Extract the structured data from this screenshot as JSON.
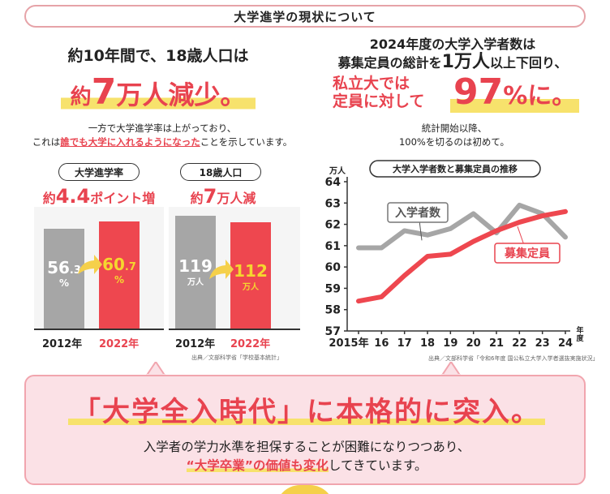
{
  "header": {
    "title": "大学進学の現状について"
  },
  "left": {
    "headline1": "約10年間で、18歳人口は",
    "headline2": {
      "pre": "約",
      "num": "7",
      "post": "万人減少。"
    },
    "note": {
      "line1": "一方で大学進学率は上がっており、",
      "line2_pre": "これは",
      "line2_red": "誰でも大学に入れるようになった",
      "line2_post": "ことを示しています。"
    },
    "panel1": {
      "pill": "大学進学率",
      "sub": {
        "pre": "約",
        "num": "4.4",
        "post": "ポイント増"
      },
      "bars": [
        {
          "year": "2012年",
          "value": 56.3,
          "label_main": "56",
          "label_dec": ".3",
          "label_unit": "%"
        },
        {
          "year": "2022年",
          "value": 60.7,
          "label_main": "60",
          "label_dec": ".7",
          "label_unit": "%"
        }
      ]
    },
    "panel2": {
      "pill": "18歳人口",
      "sub": {
        "pre": "約",
        "num": "7",
        "post": "万人減"
      },
      "bars": [
        {
          "year": "2012年",
          "value": 119,
          "label_main": "119",
          "label_unit": "万人"
        },
        {
          "year": "2022年",
          "value": 112,
          "label_main": "112",
          "label_unit": "万人"
        }
      ]
    },
    "source": "出典／文部科学省「学校基本統計」"
  },
  "right": {
    "headline1_a": "2024年度の大学入学者数は",
    "headline1_b_pre": "募集定員の総計を",
    "headline1_b_big": "1万人",
    "headline1_b_post": "以上下回り、",
    "headline2_line1": "私立大では",
    "headline2_line2": "定員に対して",
    "headline2_pct": "97",
    "headline2_pct_unit": "%に。",
    "note_line1": "統計開始以降、",
    "note_line2": "100%を切るのは初めて。",
    "source": "出典／文部科学省「令和6年度 国公私立大学入学者選抜実施状況」"
  },
  "chart_data": {
    "type": "line",
    "title": "大学入学者数と募集定員の推移",
    "ylabel": "万人",
    "xlabel_suffix": "年度",
    "ylim": [
      57,
      64
    ],
    "yticks": [
      57,
      58,
      59,
      60,
      61,
      62,
      63,
      64
    ],
    "x": [
      "2015年",
      "16",
      "17",
      "18",
      "19",
      "20",
      "21",
      "22",
      "23",
      "24"
    ],
    "series": [
      {
        "name": "入学者数",
        "color": "#a6a6a6",
        "values": [
          60.9,
          60.9,
          61.7,
          61.5,
          61.8,
          62.5,
          61.6,
          62.9,
          62.5,
          61.4
        ]
      },
      {
        "name": "募集定員",
        "color": "#ee474f",
        "values": [
          58.4,
          58.6,
          59.6,
          60.5,
          60.6,
          61.2,
          61.7,
          62.1,
          62.4,
          62.6
        ]
      }
    ],
    "grid": false
  },
  "cta": {
    "title": "「大学全入時代」に本格的に突入。",
    "sub_line1": "入学者の学力水準を担保することが困難になりつつあり、",
    "sub_line2_red": "“大学卒業”の価値も変化",
    "sub_line2_post": "してきています。"
  }
}
